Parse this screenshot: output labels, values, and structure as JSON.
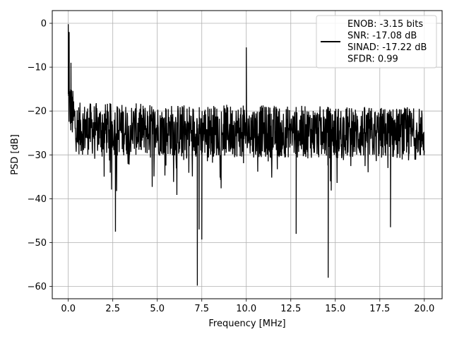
{
  "chart_data": {
    "type": "line",
    "title": "",
    "xlabel": "Frequency [MHz]",
    "ylabel": "PSD [dB]",
    "xlim": [
      -0.9,
      21.0
    ],
    "ylim": [
      -62.8,
      2.9
    ],
    "xticks": [
      0.0,
      2.5,
      5.0,
      7.5,
      10.0,
      12.5,
      15.0,
      17.5,
      20.0
    ],
    "xtick_labels": [
      "0.0",
      "2.5",
      "5.0",
      "7.5",
      "10.0",
      "12.5",
      "15.0",
      "17.5",
      "20.0"
    ],
    "yticks": [
      0,
      -10,
      -20,
      -30,
      -40,
      -50,
      -60
    ],
    "ytick_labels": [
      "0",
      "−10",
      "−20",
      "−30",
      "−40",
      "−50",
      "−60"
    ],
    "grid": true,
    "legend_position": "top-right",
    "line_color": "#000000",
    "series": [
      {
        "name": "ENOB: -3.15 bits\nSNR: -17.08 dB\nSINAD: -17.22 dB\nSFDR: 0.99",
        "noise_floor_db": -24,
        "x_range": [
          0.0,
          20.0
        ],
        "peaks": [
          {
            "x": 0.0,
            "y": -0.2
          },
          {
            "x": 0.05,
            "y": -2.0
          },
          {
            "x": 0.15,
            "y": -9.0
          },
          {
            "x": 10.0,
            "y": -5.5
          }
        ],
        "dips": [
          {
            "x": 2.65,
            "y": -47.5
          },
          {
            "x": 7.25,
            "y": -59.8
          },
          {
            "x": 7.35,
            "y": -47.0
          },
          {
            "x": 7.5,
            "y": -49.3
          },
          {
            "x": 12.8,
            "y": -48.0
          },
          {
            "x": 14.6,
            "y": -58.0
          },
          {
            "x": 18.1,
            "y": -46.5
          }
        ]
      }
    ]
  }
}
